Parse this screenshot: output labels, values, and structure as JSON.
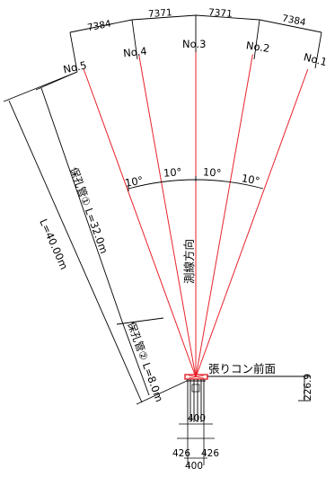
{
  "boreholes": [
    {
      "label": "No.1",
      "angle_deg": 20
    },
    {
      "label": "No.2",
      "angle_deg": 10
    },
    {
      "label": "No.3",
      "angle_deg": 0
    },
    {
      "label": "No.4",
      "angle_deg": -10
    },
    {
      "label": "No.5",
      "angle_deg": -20
    }
  ],
  "spacing_labels": [
    "7384",
    "7371",
    "7371",
    "7384"
  ],
  "angle_labels": [
    "10°",
    "10°",
    "10°",
    "10°"
  ],
  "survey_direction": "測線方向",
  "total_length_label": "L=40.00m",
  "pipe1_label": "保孔管① L=32.0m",
  "pipe2_label": "保孔管② L=8.0m",
  "wall_label": "張りコン前面",
  "wall_offset_label": "226.9",
  "base_labels": {
    "top_width": "400",
    "left_offset": "426",
    "right_offset": "426",
    "bottom_width": "400"
  },
  "colors": {
    "ray": "#e8222a",
    "line": "#000000",
    "origin": "#e8222a"
  }
}
